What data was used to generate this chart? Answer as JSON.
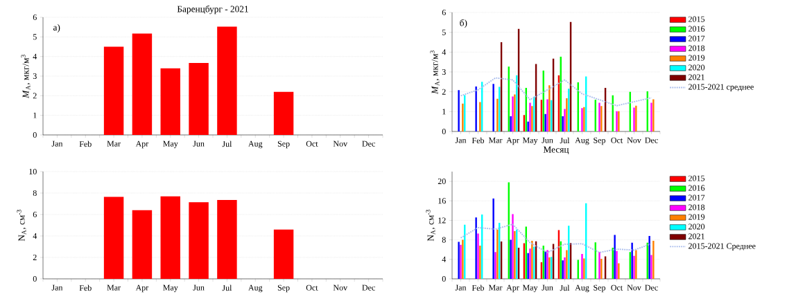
{
  "chart_data": [
    {
      "type": "bar",
      "title": "Баренцбург - 2021",
      "annotations": [
        "а)"
      ],
      "ylabel": "*M*$_{А}$, мкг/м$^{3}$",
      "categories": [
        "Jan",
        "Feb",
        "Mar",
        "Apr",
        "May",
        "Jun",
        "Jul",
        "Aug",
        "Sep",
        "Oct",
        "Nov",
        "Dec"
      ],
      "values": [
        null,
        null,
        4.5,
        5.17,
        3.4,
        3.67,
        5.52,
        null,
        2.2,
        null,
        null,
        null
      ],
      "color": "#ff0000",
      "ylim": [
        0,
        6
      ],
      "yticks": [
        0,
        1,
        2,
        3,
        4,
        5,
        6
      ],
      "grid": "y"
    },
    {
      "type": "bar",
      "ylabel": "N$_{А}$, см$^{-3}$",
      "categories": [
        "Jan",
        "Feb",
        "Mar",
        "Apr",
        "May",
        "Jun",
        "Jul",
        "Aug",
        "Sep",
        "Oct",
        "Nov",
        "Dec"
      ],
      "values": [
        null,
        null,
        7.65,
        6.4,
        7.7,
        7.15,
        7.35,
        null,
        4.6,
        null,
        null,
        null
      ],
      "color": "#ff0000",
      "ylim": [
        0,
        10
      ],
      "yticks": [
        0,
        2,
        4,
        6,
        8,
        10
      ],
      "grid": "y"
    },
    {
      "type": "bar",
      "annotations": [
        "б)"
      ],
      "ylabel": "*M*$_{А}$, мкг/м$^{3}$",
      "xlabel": "Месяц",
      "categories": [
        "Jan",
        "Feb",
        "Mar",
        "Apr",
        "May",
        "Jun",
        "Jul",
        "Aug",
        "Sep",
        "Oct",
        "Nov",
        "Dec"
      ],
      "series": [
        {
          "name": "2015",
          "color": "#ff0000",
          "values": [
            null,
            null,
            null,
            null,
            0.83,
            1.6,
            2.83,
            null,
            null,
            null,
            null,
            null
          ]
        },
        {
          "name": "2016",
          "color": "#00ff00",
          "values": [
            null,
            null,
            null,
            3.27,
            2.2,
            3.07,
            3.78,
            2.48,
            1.6,
            1.82,
            2.0,
            2.02
          ]
        },
        {
          "name": "2017",
          "color": "#0000ff",
          "values": [
            2.08,
            2.27,
            2.4,
            0.77,
            0.5,
            0.88,
            0.77,
            null,
            null,
            null,
            null,
            null
          ]
        },
        {
          "name": "2018",
          "color": "#ff00ff",
          "values": [
            null,
            null,
            null,
            1.77,
            1.45,
            1.62,
            1.13,
            1.18,
            1.45,
            1.02,
            1.2,
            1.45
          ]
        },
        {
          "name": "2019",
          "color": "#ff8000",
          "values": [
            1.4,
            1.48,
            1.65,
            1.87,
            1.28,
            2.33,
            1.67,
            1.23,
            1.28,
            1.02,
            1.3,
            1.62
          ]
        },
        {
          "name": "2020",
          "color": "#00ffff",
          "values": [
            1.83,
            2.5,
            2.25,
            2.83,
            1.75,
            1.58,
            2.15,
            2.77,
            null,
            null,
            null,
            null
          ]
        },
        {
          "name": "2021",
          "color": "#800000",
          "values": [
            null,
            null,
            4.5,
            5.17,
            3.4,
            3.67,
            5.52,
            null,
            2.2,
            null,
            null,
            null
          ]
        },
        {
          "name": "2015-2021 среднее",
          "type": "line",
          "line_style": "dotted",
          "color": "#a8bcec",
          "values": [
            1.8,
            2.1,
            2.7,
            2.6,
            1.6,
            2.1,
            2.6,
            1.9,
            1.6,
            1.3,
            1.5,
            1.7
          ]
        }
      ],
      "ylim": [
        0,
        6
      ],
      "yticks": [
        0,
        1,
        2,
        3,
        4,
        5,
        6
      ],
      "grid": "y",
      "legend": "right"
    },
    {
      "type": "bar",
      "ylabel": "N$_{А}$, см$^{-3}$",
      "categories": [
        "Jan",
        "Feb",
        "Mar",
        "Apr",
        "May",
        "Jun",
        "Jul",
        "Aug",
        "Sep",
        "Oct",
        "Nov",
        "Dec"
      ],
      "series": [
        {
          "name": "2015",
          "color": "#ff0000",
          "values": [
            null,
            null,
            null,
            null,
            7.3,
            3.4,
            10.0,
            null,
            null,
            null,
            null,
            null
          ]
        },
        {
          "name": "2016",
          "color": "#00ff00",
          "values": [
            null,
            null,
            null,
            19.8,
            10.7,
            6.8,
            7.7,
            3.9,
            7.5,
            6.4,
            5.5,
            7.4
          ]
        },
        {
          "name": "2017",
          "color": "#0000ff",
          "values": [
            7.6,
            12.6,
            16.5,
            8.0,
            5.3,
            5.6,
            3.8,
            null,
            null,
            9.0,
            7.4,
            8.8
          ]
        },
        {
          "name": "2018",
          "color": "#ff00ff",
          "values": [
            7.0,
            9.3,
            5.5,
            13.3,
            6.2,
            5.9,
            4.4,
            5.1,
            5.5,
            5.7,
            4.7,
            4.9
          ]
        },
        {
          "name": "2019",
          "color": "#ff8000",
          "values": [
            8.0,
            6.8,
            10.1,
            9.8,
            7.8,
            4.4,
            5.9,
            4.2,
            4.1,
            3.2,
            5.9,
            7.8
          ]
        },
        {
          "name": "2020",
          "color": "#00ffff",
          "values": [
            11.1,
            13.2,
            11.5,
            10.1,
            6.6,
            4.5,
            10.9,
            15.5,
            null,
            null,
            null,
            null
          ]
        },
        {
          "name": "2021",
          "color": "#800000",
          "values": [
            null,
            null,
            7.65,
            6.4,
            7.7,
            7.15,
            7.35,
            null,
            4.6,
            null,
            null,
            null
          ]
        },
        {
          "name": "2015-2021 Среднее",
          "type": "line",
          "line_style": "dotted",
          "color": "#a8bcec",
          "values": [
            8.4,
            10.5,
            10.2,
            11.2,
            7.4,
            5.4,
            7.1,
            7.2,
            5.4,
            6.1,
            5.9,
            7.2
          ]
        }
      ],
      "ylim": [
        0,
        22
      ],
      "yticks": [
        0,
        4,
        8,
        12,
        16,
        20
      ],
      "grid": "y",
      "legend": "right"
    }
  ]
}
